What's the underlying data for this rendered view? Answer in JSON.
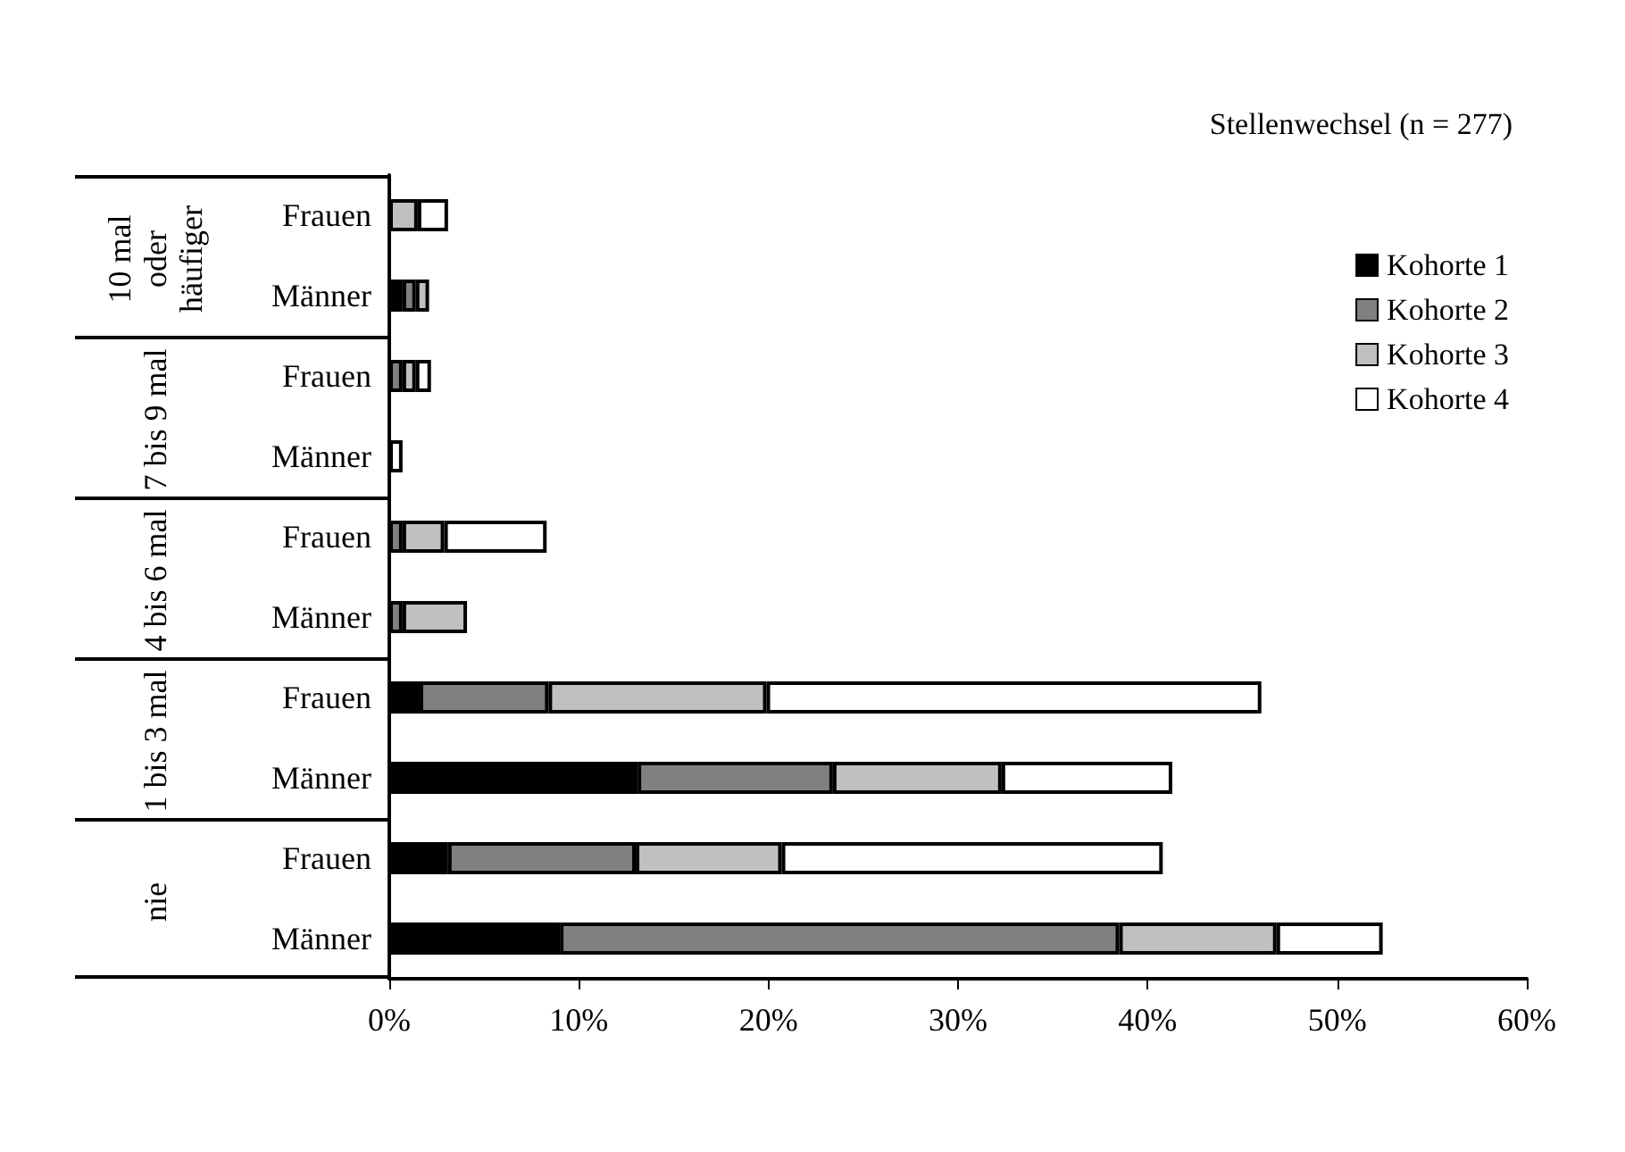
{
  "chart_data": {
    "type": "bar",
    "orientation": "horizontal",
    "stacked": true,
    "title": "Stellenwechsel (n = 277)",
    "categories": [
      "Frauen",
      "Männer",
      "Frauen",
      "Männer",
      "Frauen",
      "Männer",
      "Frauen",
      "Männer",
      "Frauen",
      "Männer"
    ],
    "annotations": [
      "10 mal oder häufiger",
      "7 bis 9 mal",
      "4 bis 6 mal",
      "1 bis 3 mal",
      "nie"
    ],
    "series": [
      {
        "name": "Kohorte 1",
        "color": "#000000",
        "values": [
          0,
          0.7,
          0,
          0,
          0,
          0,
          1.6,
          13.1,
          3.1,
          9.0
        ]
      },
      {
        "name": "Kohorte 2",
        "color": "#808080",
        "values": [
          0,
          0.7,
          0.7,
          0,
          0.7,
          0.7,
          6.8,
          10.3,
          9.9,
          29.5
        ]
      },
      {
        "name": "Kohorte 3",
        "color": "#c0c0c0",
        "values": [
          1.5,
          0.7,
          0.7,
          0,
          2.2,
          3.4,
          11.5,
          8.9,
          7.7,
          8.3
        ]
      },
      {
        "name": "Kohorte 4",
        "color": "#ffffff",
        "values": [
          1.6,
          0,
          0.8,
          0.7,
          5.4,
          0,
          26.1,
          9.0,
          20.1,
          5.6
        ]
      }
    ],
    "xlim": [
      0,
      60
    ],
    "xticks": [
      {
        "value": 0,
        "label": "0%"
      },
      {
        "value": 10,
        "label": "10%"
      },
      {
        "value": 20,
        "label": "20%"
      },
      {
        "value": 30,
        "label": "30%"
      },
      {
        "value": 40,
        "label": "40%"
      },
      {
        "value": 50,
        "label": "50%"
      },
      {
        "value": 60,
        "label": "60%"
      }
    ],
    "grid": false,
    "legend": "top right"
  }
}
